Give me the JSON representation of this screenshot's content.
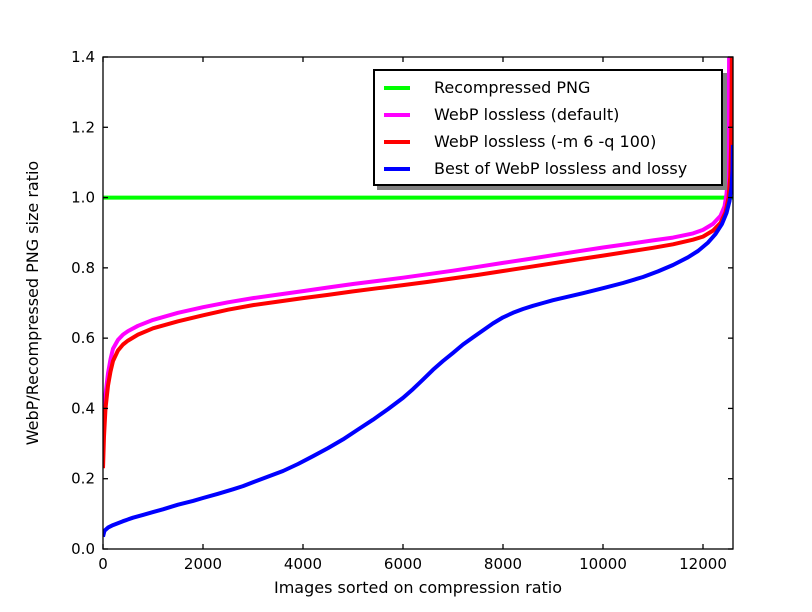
{
  "chart_data": {
    "type": "line",
    "title": "",
    "xlabel": "Images sorted on compression ratio",
    "ylabel": "WebP/Recompressed PNG size ratio",
    "xlim": [
      0,
      12600
    ],
    "ylim": [
      0.0,
      1.4
    ],
    "xticks": [
      0,
      2000,
      4000,
      6000,
      8000,
      10000,
      12000
    ],
    "yticks": [
      0.0,
      0.2,
      0.4,
      0.6,
      0.8,
      1.0,
      1.2,
      1.4
    ],
    "grid": false,
    "legend_position": "upper right inside",
    "axis_color": "#000000",
    "background_color": "#ffffff",
    "series": [
      {
        "name": "Recompressed PNG",
        "color": "#00ff00",
        "points": [
          [
            0,
            1.0
          ],
          [
            12600,
            1.0
          ]
        ]
      },
      {
        "name": "WebP lossless (default)",
        "color": "#ff00ff",
        "points": [
          [
            0,
            0.27
          ],
          [
            20,
            0.36
          ],
          [
            50,
            0.44
          ],
          [
            100,
            0.5
          ],
          [
            150,
            0.54
          ],
          [
            200,
            0.57
          ],
          [
            300,
            0.595
          ],
          [
            400,
            0.61
          ],
          [
            500,
            0.62
          ],
          [
            700,
            0.635
          ],
          [
            1000,
            0.652
          ],
          [
            1500,
            0.672
          ],
          [
            2000,
            0.688
          ],
          [
            2500,
            0.702
          ],
          [
            3000,
            0.714
          ],
          [
            3500,
            0.724
          ],
          [
            4000,
            0.734
          ],
          [
            4500,
            0.744
          ],
          [
            5000,
            0.754
          ],
          [
            5500,
            0.763
          ],
          [
            6000,
            0.772
          ],
          [
            6500,
            0.782
          ],
          [
            7000,
            0.792
          ],
          [
            7500,
            0.803
          ],
          [
            8000,
            0.814
          ],
          [
            8500,
            0.825
          ],
          [
            9000,
            0.836
          ],
          [
            9500,
            0.847
          ],
          [
            10000,
            0.858
          ],
          [
            10500,
            0.868
          ],
          [
            11000,
            0.878
          ],
          [
            11400,
            0.886
          ],
          [
            11800,
            0.898
          ],
          [
            12000,
            0.908
          ],
          [
            12200,
            0.925
          ],
          [
            12350,
            0.948
          ],
          [
            12430,
            0.975
          ],
          [
            12470,
            1.01
          ],
          [
            12495,
            1.06
          ],
          [
            12510,
            1.15
          ],
          [
            12518,
            1.28
          ],
          [
            12522,
            1.4
          ]
        ]
      },
      {
        "name": "WebP lossless (-m 6 -q 100)",
        "color": "#ff0000",
        "points": [
          [
            0,
            0.23
          ],
          [
            20,
            0.32
          ],
          [
            50,
            0.4
          ],
          [
            100,
            0.465
          ],
          [
            150,
            0.505
          ],
          [
            200,
            0.535
          ],
          [
            300,
            0.565
          ],
          [
            400,
            0.582
          ],
          [
            500,
            0.593
          ],
          [
            700,
            0.61
          ],
          [
            1000,
            0.628
          ],
          [
            1500,
            0.648
          ],
          [
            2000,
            0.665
          ],
          [
            2500,
            0.681
          ],
          [
            3000,
            0.694
          ],
          [
            3500,
            0.704
          ],
          [
            4000,
            0.714
          ],
          [
            4500,
            0.723
          ],
          [
            5000,
            0.733
          ],
          [
            5500,
            0.742
          ],
          [
            6000,
            0.751
          ],
          [
            6500,
            0.76
          ],
          [
            7000,
            0.77
          ],
          [
            7500,
            0.78
          ],
          [
            8000,
            0.791
          ],
          [
            8500,
            0.802
          ],
          [
            9000,
            0.813
          ],
          [
            9500,
            0.824
          ],
          [
            10000,
            0.835
          ],
          [
            10500,
            0.846
          ],
          [
            11000,
            0.857
          ],
          [
            11400,
            0.867
          ],
          [
            11800,
            0.88
          ],
          [
            12000,
            0.889
          ],
          [
            12200,
            0.906
          ],
          [
            12350,
            0.928
          ],
          [
            12450,
            0.958
          ],
          [
            12510,
            1.0
          ],
          [
            12545,
            1.06
          ],
          [
            12562,
            1.15
          ],
          [
            12572,
            1.3
          ],
          [
            12576,
            1.4
          ]
        ]
      },
      {
        "name": "Best of WebP lossless and lossy",
        "color": "#0000ff",
        "points": [
          [
            0,
            0.035
          ],
          [
            30,
            0.052
          ],
          [
            100,
            0.061
          ],
          [
            200,
            0.068
          ],
          [
            400,
            0.079
          ],
          [
            600,
            0.089
          ],
          [
            800,
            0.097
          ],
          [
            1000,
            0.105
          ],
          [
            1200,
            0.113
          ],
          [
            1500,
            0.126
          ],
          [
            1800,
            0.137
          ],
          [
            2000,
            0.145
          ],
          [
            2300,
            0.157
          ],
          [
            2600,
            0.17
          ],
          [
            2800,
            0.179
          ],
          [
            3000,
            0.19
          ],
          [
            3300,
            0.206
          ],
          [
            3600,
            0.222
          ],
          [
            3900,
            0.242
          ],
          [
            4200,
            0.264
          ],
          [
            4500,
            0.287
          ],
          [
            4800,
            0.312
          ],
          [
            5100,
            0.34
          ],
          [
            5400,
            0.368
          ],
          [
            5700,
            0.398
          ],
          [
            6000,
            0.43
          ],
          [
            6200,
            0.455
          ],
          [
            6400,
            0.482
          ],
          [
            6600,
            0.51
          ],
          [
            6800,
            0.535
          ],
          [
            7000,
            0.558
          ],
          [
            7200,
            0.582
          ],
          [
            7400,
            0.602
          ],
          [
            7600,
            0.622
          ],
          [
            7800,
            0.642
          ],
          [
            8000,
            0.659
          ],
          [
            8200,
            0.672
          ],
          [
            8400,
            0.683
          ],
          [
            8600,
            0.692
          ],
          [
            8800,
            0.7
          ],
          [
            9000,
            0.708
          ],
          [
            9300,
            0.718
          ],
          [
            9600,
            0.728
          ],
          [
            10000,
            0.742
          ],
          [
            10400,
            0.757
          ],
          [
            10800,
            0.774
          ],
          [
            11100,
            0.79
          ],
          [
            11400,
            0.808
          ],
          [
            11700,
            0.83
          ],
          [
            11900,
            0.848
          ],
          [
            12100,
            0.872
          ],
          [
            12250,
            0.896
          ],
          [
            12380,
            0.925
          ],
          [
            12470,
            0.956
          ],
          [
            12530,
            0.99
          ],
          [
            12570,
            1.03
          ],
          [
            12590,
            1.08
          ],
          [
            12598,
            1.15
          ]
        ]
      }
    ]
  },
  "legend": {
    "entries": [
      "Recompressed PNG",
      "WebP lossless (default)",
      "WebP lossless (-m 6 -q 100)",
      "Best of WebP lossless and lossy"
    ]
  }
}
